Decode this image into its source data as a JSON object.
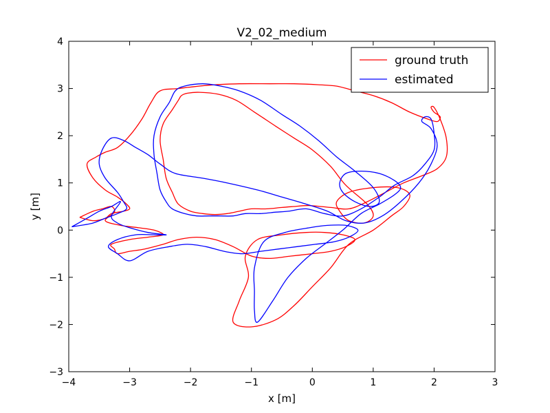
{
  "chart_data": {
    "type": "line",
    "title": "V2_02_medium",
    "xlabel": "x [m]",
    "ylabel": "y [m]",
    "xlim": [
      -4,
      3
    ],
    "ylim": [
      -3,
      4
    ],
    "xticks": [
      "−4",
      "−3",
      "−2",
      "−1",
      "0",
      "1",
      "2",
      "3"
    ],
    "yticks": [
      "−3",
      "−2",
      "−1",
      "0",
      "1",
      "2",
      "3",
      "4"
    ],
    "grid": false,
    "legend_position": "top-right",
    "series": [
      {
        "name": "ground truth",
        "color": "#ff0000",
        "x": [
          -3.82,
          -3.6,
          -3.45,
          -3.3,
          -3.25,
          -3.4,
          -3.15,
          -2.85,
          -2.6,
          -2.45,
          -2.7,
          -3.0,
          -3.3,
          -3.25,
          -3.2,
          -3.0,
          -2.75,
          -2.45,
          -2.2,
          -1.9,
          -1.6,
          -1.3,
          -1.0,
          -0.7,
          -0.35,
          0.0,
          0.3,
          0.55,
          0.7,
          0.5,
          0.2,
          -0.1,
          -0.5,
          -0.9,
          -1.1,
          -1.05,
          -1.2,
          -1.3,
          -1.0,
          -0.6,
          -0.3,
          0.0,
          0.3,
          0.6,
          1.0,
          1.3,
          1.5,
          1.6,
          1.4,
          1.0,
          0.6,
          0.4,
          0.45,
          0.6,
          0.85,
          1.0,
          0.9,
          0.55,
          0.3,
          0.0,
          -0.3,
          -0.6,
          -0.95,
          -1.25,
          -1.55,
          -1.85,
          -2.05,
          -2.15,
          -2.2,
          -2.3,
          -2.45,
          -2.5,
          -2.45,
          -2.4,
          -2.3,
          -2.2,
          -2.0,
          -1.8,
          -1.6,
          -1.4,
          -1.2,
          -1.0,
          -0.75,
          -0.5,
          -0.3,
          -0.05,
          0.3,
          0.6,
          0.9,
          1.2,
          1.5,
          1.8,
          2.05,
          2.2,
          2.2,
          2.1,
          2.0,
          1.95,
          2.0,
          2.1,
          2.05,
          1.9,
          1.6,
          1.3,
          1.0,
          0.7,
          0.4,
          0.1,
          -0.3,
          -0.7,
          -1.2,
          -1.7,
          -2.2,
          -2.5,
          -2.65,
          -2.8,
          -3.0,
          -3.2,
          -3.4,
          -3.55,
          -3.7,
          -3.6,
          -3.4,
          -3.2,
          -3.05,
          -3.0,
          -3.1,
          -3.3,
          -3.4,
          -3.6,
          -3.82
        ],
        "y": [
          0.27,
          0.4,
          0.45,
          0.5,
          0.38,
          0.2,
          0.1,
          0.05,
          0.0,
          -0.1,
          -0.15,
          -0.2,
          -0.3,
          -0.4,
          -0.5,
          -0.45,
          -0.4,
          -0.3,
          -0.2,
          -0.15,
          -0.2,
          -0.35,
          -0.55,
          -0.6,
          -0.55,
          -0.5,
          -0.45,
          -0.35,
          -0.2,
          -0.1,
          -0.05,
          -0.05,
          -0.1,
          -0.2,
          -0.55,
          -1.0,
          -1.5,
          -1.95,
          -2.05,
          -1.9,
          -1.6,
          -1.2,
          -0.8,
          -0.3,
          0.0,
          0.3,
          0.5,
          0.75,
          0.9,
          0.9,
          0.8,
          0.6,
          0.4,
          0.2,
          0.15,
          0.3,
          0.55,
          0.95,
          1.35,
          1.7,
          1.95,
          2.2,
          2.5,
          2.75,
          2.88,
          2.92,
          2.9,
          2.85,
          2.75,
          2.55,
          2.25,
          1.9,
          1.5,
          1.1,
          0.8,
          0.55,
          0.4,
          0.35,
          0.33,
          0.35,
          0.4,
          0.45,
          0.45,
          0.48,
          0.5,
          0.52,
          0.48,
          0.45,
          0.6,
          0.8,
          1.0,
          1.15,
          1.3,
          1.55,
          1.95,
          2.35,
          2.6,
          2.6,
          2.5,
          2.4,
          2.3,
          2.35,
          2.5,
          2.7,
          2.85,
          2.95,
          3.05,
          3.08,
          3.1,
          3.1,
          3.1,
          3.07,
          3.0,
          2.95,
          2.7,
          2.35,
          2.0,
          1.75,
          1.65,
          1.55,
          1.4,
          1.1,
          0.85,
          0.7,
          0.55,
          0.45,
          0.4,
          0.35,
          0.25,
          0.2,
          0.27
        ]
      },
      {
        "name": "estimated",
        "color": "#0000ff",
        "x": [
          -3.95,
          -3.7,
          -3.5,
          -3.3,
          -3.15,
          -3.3,
          -3.2,
          -3.0,
          -2.7,
          -2.4,
          -2.6,
          -2.9,
          -3.2,
          -3.35,
          -3.2,
          -3.0,
          -2.7,
          -2.35,
          -2.05,
          -1.75,
          -1.45,
          -1.15,
          -0.85,
          -0.55,
          -0.25,
          0.05,
          0.35,
          0.6,
          0.75,
          0.55,
          0.25,
          -0.05,
          -0.45,
          -0.8,
          -0.95,
          -0.95,
          -0.95,
          -0.9,
          -0.65,
          -0.4,
          -0.1,
          0.2,
          0.5,
          0.8,
          1.1,
          1.35,
          1.45,
          1.35,
          1.1,
          0.8,
          0.55,
          0.45,
          0.5,
          0.7,
          0.95,
          1.1,
          1.0,
          0.7,
          0.4,
          0.1,
          -0.2,
          -0.5,
          -0.85,
          -1.2,
          -1.5,
          -1.8,
          -2.1,
          -2.25,
          -2.35,
          -2.5,
          -2.6,
          -2.6,
          -2.55,
          -2.5,
          -2.4,
          -2.3,
          -2.1,
          -1.9,
          -1.7,
          -1.5,
          -1.3,
          -1.1,
          -0.85,
          -0.6,
          -0.4,
          -0.1,
          0.2,
          0.5,
          0.8,
          1.1,
          1.35,
          1.65,
          1.85,
          2.0,
          2.0,
          1.95,
          1.85,
          1.8,
          1.95,
          2.05,
          1.95,
          1.75,
          1.45,
          1.15,
          0.85,
          0.55,
          0.25,
          -0.1,
          -0.5,
          -0.9,
          -1.4,
          -1.8,
          -2.25,
          -2.5,
          -2.7,
          -2.9,
          -3.1,
          -3.3,
          -3.45,
          -3.5,
          -3.4,
          -3.2,
          -3.1,
          -3.05,
          -3.2,
          -3.4,
          -3.6,
          -3.8,
          -3.95
        ],
        "y": [
          0.07,
          0.25,
          0.4,
          0.5,
          0.6,
          0.3,
          0.15,
          0.05,
          -0.05,
          -0.1,
          -0.1,
          -0.1,
          -0.2,
          -0.35,
          -0.5,
          -0.65,
          -0.45,
          -0.35,
          -0.3,
          -0.35,
          -0.45,
          -0.5,
          -0.45,
          -0.4,
          -0.35,
          -0.3,
          -0.25,
          -0.15,
          0.0,
          0.1,
          0.1,
          0.05,
          -0.05,
          -0.25,
          -0.8,
          -1.3,
          -1.7,
          -1.95,
          -1.5,
          -1.0,
          -0.6,
          -0.3,
          0.0,
          0.35,
          0.55,
          0.75,
          0.9,
          1.05,
          1.2,
          1.25,
          1.2,
          1.0,
          0.8,
          0.6,
          0.5,
          0.6,
          0.9,
          1.25,
          1.55,
          1.9,
          2.2,
          2.45,
          2.75,
          2.95,
          3.05,
          3.1,
          3.05,
          2.95,
          2.7,
          2.4,
          2.0,
          1.6,
          1.2,
          0.85,
          0.6,
          0.45,
          0.35,
          0.3,
          0.3,
          0.3,
          0.3,
          0.35,
          0.35,
          0.38,
          0.4,
          0.45,
          0.35,
          0.3,
          0.45,
          0.7,
          0.95,
          1.15,
          1.4,
          1.7,
          2.05,
          2.35,
          2.4,
          2.3,
          2.15,
          1.8,
          1.4,
          1.0,
          0.6,
          0.3,
          0.15,
          0.2,
          0.4,
          0.55,
          0.7,
          0.85,
          1.0,
          1.1,
          1.2,
          1.4,
          1.6,
          1.75,
          1.9,
          1.95,
          1.7,
          1.4,
          1.1,
          0.8,
          0.6,
          0.45,
          0.35,
          0.25,
          0.15,
          0.1,
          0.07
        ]
      }
    ]
  }
}
